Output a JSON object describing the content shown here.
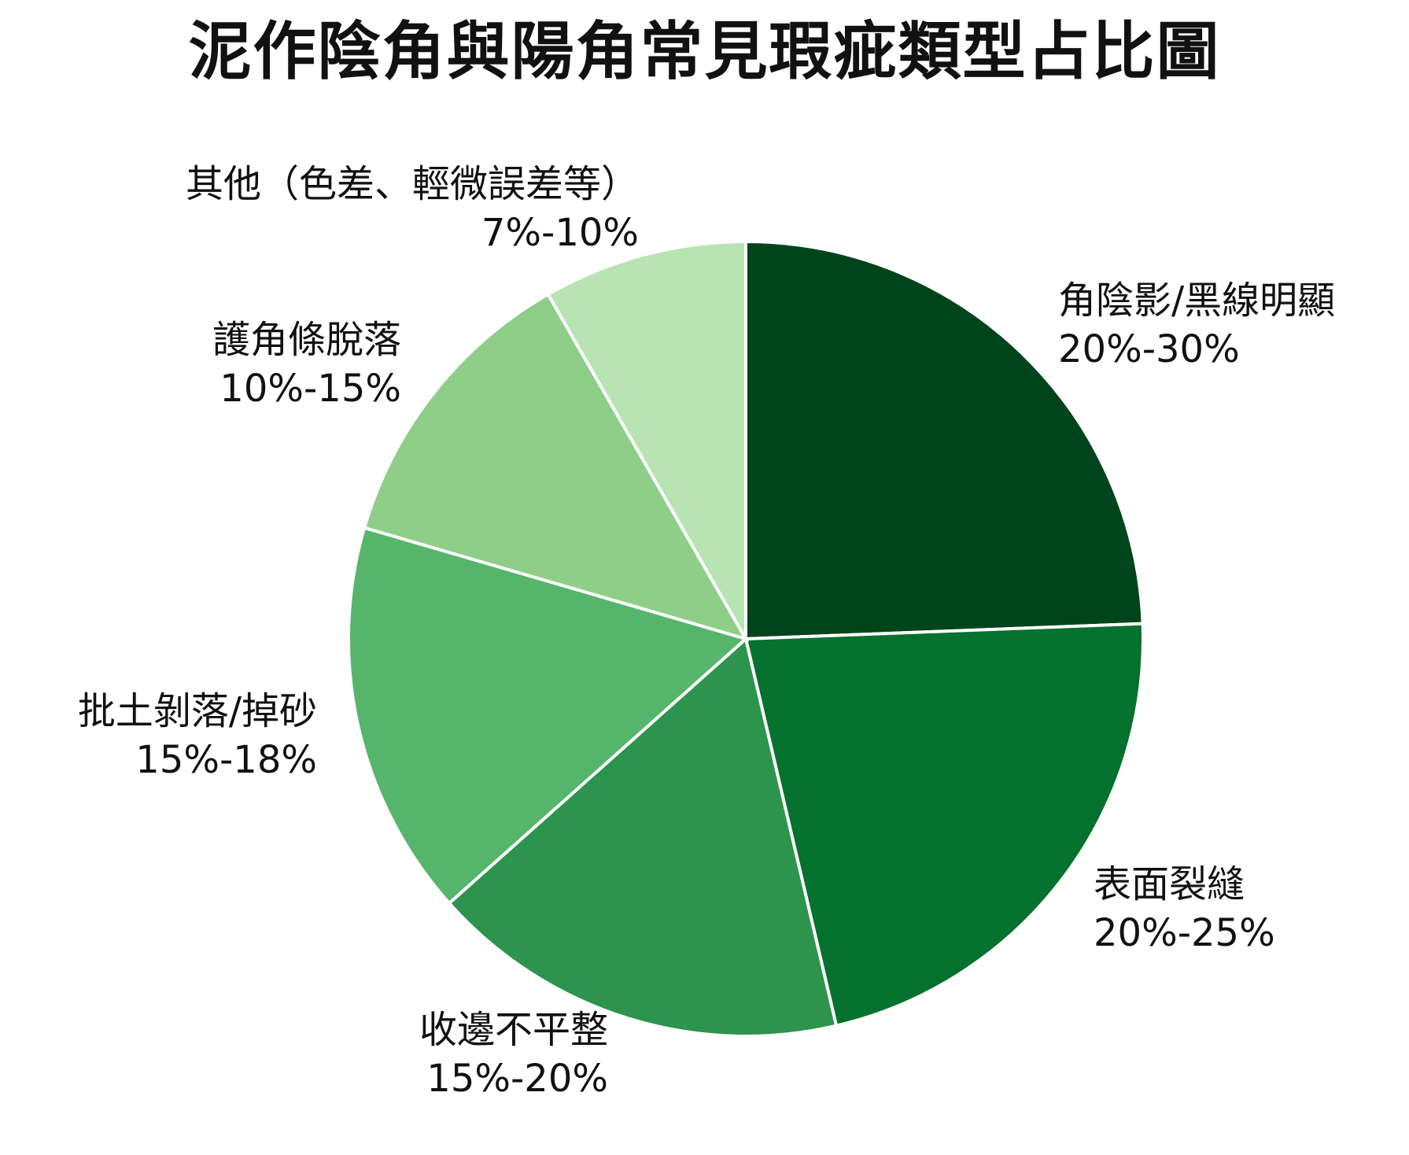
{
  "chart_data": {
    "type": "pie",
    "title": "泥作陰角與陽角常見瑕疵類型占比圖",
    "slices": [
      {
        "label": "角陰影/黑線明顯",
        "range_text": "20%-30%",
        "value": 25,
        "color": "#00441b"
      },
      {
        "label": "表面裂縫",
        "range_text": "20%-25%",
        "value": 22.5,
        "color": "#05712f"
      },
      {
        "label": "收邊不平整",
        "range_text": "15%-20%",
        "value": 17.5,
        "color": "#2c944d"
      },
      {
        "label": "批土剝落/掉砂",
        "range_text": "15%-18%",
        "value": 16.5,
        "color": "#55b56b"
      },
      {
        "label": "護角條脫落",
        "range_text": "10%-15%",
        "value": 12.5,
        "color": "#8ece88"
      },
      {
        "label": "其他（色差、輕微誤差等）",
        "range_text": "7%-10%",
        "value": 8.5,
        "color": "#b8e3b2"
      }
    ],
    "start_angle_deg": 0,
    "direction": "clockwise",
    "legend": "none"
  }
}
